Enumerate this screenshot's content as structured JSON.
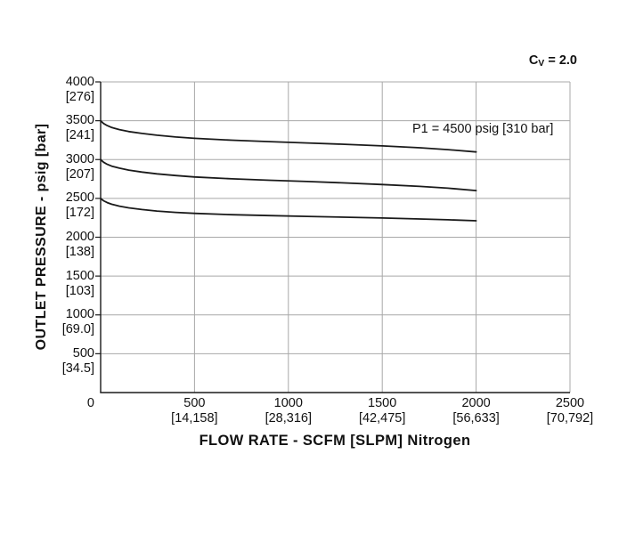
{
  "chart_data": {
    "type": "line",
    "title": "",
    "xlabel": "FLOW RATE - SCFM [SLPM] Nitrogen",
    "ylabel": "OUTLET PRESSURE - psig [bar]",
    "cv_label": {
      "prefix": "C",
      "subscript": "V",
      "suffix": " = 2.0"
    },
    "annotation": "P1 = 4500 psig [310 bar]",
    "xlim": [
      0,
      2500
    ],
    "ylim": [
      0,
      4000
    ],
    "grid": true,
    "legend": false,
    "x_unit": "SCFM [SLPM] Nitrogen",
    "y_unit": "psig [bar]",
    "x_ticks": [
      {
        "value": 0,
        "label": "0",
        "sub": ""
      },
      {
        "value": 500,
        "label": "500",
        "sub": "[14,158]"
      },
      {
        "value": 1000,
        "label": "1000",
        "sub": "[28,316]"
      },
      {
        "value": 1500,
        "label": "1500",
        "sub": "[42,475]"
      },
      {
        "value": 2000,
        "label": "2000",
        "sub": "[56,633]"
      },
      {
        "value": 2500,
        "label": "2500",
        "sub": "[70,792]"
      }
    ],
    "y_ticks": [
      {
        "value": 4000,
        "label": "4000",
        "sub": "[276]"
      },
      {
        "value": 3500,
        "label": "3500",
        "sub": "[241]"
      },
      {
        "value": 3000,
        "label": "3000",
        "sub": "[207]"
      },
      {
        "value": 2500,
        "label": "2500",
        "sub": "[172]"
      },
      {
        "value": 2000,
        "label": "2000",
        "sub": "[138]"
      },
      {
        "value": 1500,
        "label": "1500",
        "sub": "[103]"
      },
      {
        "value": 1000,
        "label": "1000",
        "sub": "[69.0]"
      },
      {
        "value": 500,
        "label": "500",
        "sub": "[34.5]"
      }
    ],
    "series": [
      {
        "name": "set-pressure-3500-psig",
        "points": [
          [
            0,
            3500
          ],
          [
            15,
            3465
          ],
          [
            35,
            3437
          ],
          [
            60,
            3412
          ],
          [
            100,
            3386
          ],
          [
            150,
            3361
          ],
          [
            220,
            3336
          ],
          [
            300,
            3313
          ],
          [
            400,
            3291
          ],
          [
            500,
            3273
          ],
          [
            700,
            3249
          ],
          [
            900,
            3231
          ],
          [
            1100,
            3214
          ],
          [
            1300,
            3196
          ],
          [
            1500,
            3176
          ],
          [
            1700,
            3152
          ],
          [
            1850,
            3128
          ],
          [
            2000,
            3098
          ]
        ]
      },
      {
        "name": "set-pressure-3000-psig",
        "points": [
          [
            0,
            3000
          ],
          [
            15,
            2966
          ],
          [
            35,
            2939
          ],
          [
            60,
            2915
          ],
          [
            100,
            2889
          ],
          [
            150,
            2864
          ],
          [
            220,
            2839
          ],
          [
            300,
            2816
          ],
          [
            400,
            2794
          ],
          [
            500,
            2776
          ],
          [
            700,
            2752
          ],
          [
            900,
            2734
          ],
          [
            1100,
            2717
          ],
          [
            1300,
            2699
          ],
          [
            1500,
            2679
          ],
          [
            1700,
            2655
          ],
          [
            1850,
            2631
          ],
          [
            2000,
            2601
          ]
        ]
      },
      {
        "name": "set-pressure-2500-psig",
        "points": [
          [
            0,
            2500
          ],
          [
            15,
            2470
          ],
          [
            35,
            2446
          ],
          [
            60,
            2424
          ],
          [
            100,
            2400
          ],
          [
            150,
            2378
          ],
          [
            220,
            2356
          ],
          [
            300,
            2337
          ],
          [
            400,
            2320
          ],
          [
            500,
            2307
          ],
          [
            700,
            2290
          ],
          [
            900,
            2278
          ],
          [
            1100,
            2268
          ],
          [
            1300,
            2258
          ],
          [
            1500,
            2247
          ],
          [
            1700,
            2235
          ],
          [
            1850,
            2225
          ],
          [
            2000,
            2212
          ]
        ]
      }
    ],
    "line_color": "#1a1a1a",
    "grid_color": "#a8a8a8",
    "axis_color": "#1a1a1a",
    "text_color": "#111111"
  }
}
